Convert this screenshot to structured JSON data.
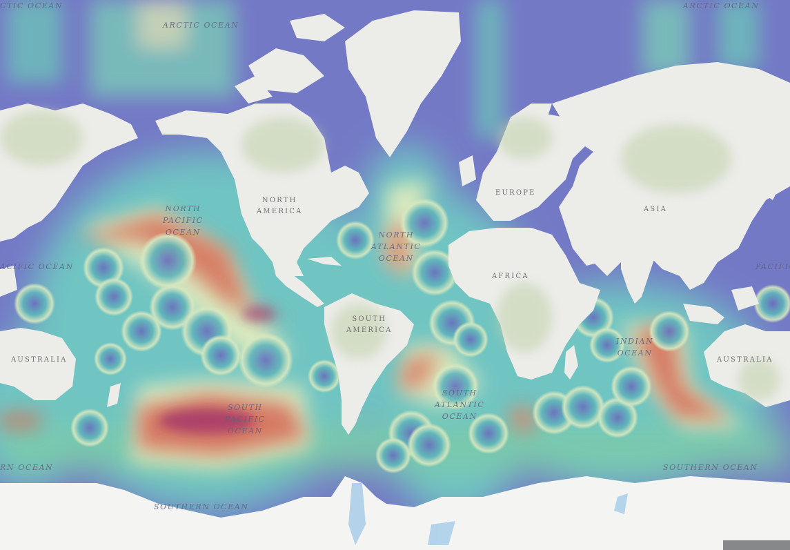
{
  "map": {
    "continents": {
      "north_america": "NORTH\nAMERICA",
      "south_america": "SOUTH\nAMERICA",
      "europe": "EUROPE",
      "africa": "AFRICA",
      "asia": "ASIA",
      "australia_west": "AUSTRALIA",
      "australia_east": "AUSTRALIA"
    },
    "oceans": {
      "arctic_left": "CTIC OCEAN",
      "arctic_center": "ARCTIC OCEAN",
      "arctic_right": "ARCTIC OCEAN",
      "north_pacific": "NORTH\nPACIFIC\nOCEAN",
      "pacific_left": "ACIFIC OCEAN",
      "pacific_right": "PACIFIC",
      "north_atlantic": "NORTH\nATLANTIC\nOCEAN",
      "south_pacific": "SOUTH\nPACIFIC\nOCEAN",
      "south_atlantic": "SOUTH\nATLANTIC\nOCEAN",
      "indian": "INDIAN\nOCEAN",
      "southern_left": "RN OCEAN",
      "southern_center": "SOUTHERN OCEAN",
      "southern_right": "SOUTHERN OCEAN"
    },
    "colors": {
      "low": "#6f6fc4",
      "mid_low": "#6fc3c3",
      "mid": "#e8eec2",
      "high": "#d8765e",
      "max": "#a3336c",
      "land": "#ecece9",
      "vegetation": "#bfd0a8",
      "antarctica": "#f4f4f3"
    }
  }
}
